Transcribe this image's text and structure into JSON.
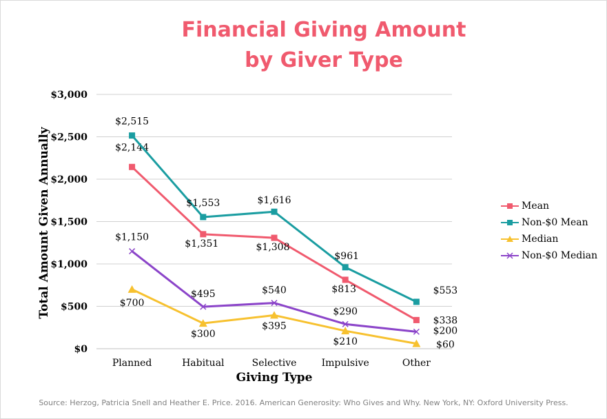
{
  "chart_data": {
    "type": "line",
    "title_lines": [
      "Financial Giving Amount",
      "by Giver Type"
    ],
    "xlabel": "Giving Type",
    "ylabel": "Total Amount Given Annually",
    "categories": [
      "Planned",
      "Habitual",
      "Selective",
      "Impulsive",
      "Other"
    ],
    "ylim": [
      0,
      3000
    ],
    "yticks": [
      {
        "value": 0,
        "label": "$0"
      },
      {
        "value": 500,
        "label": "$500"
      },
      {
        "value": 1000,
        "label": "$1,000"
      },
      {
        "value": 1500,
        "label": "$1,500"
      },
      {
        "value": 2000,
        "label": "$2,000"
      },
      {
        "value": 2500,
        "label": "$2,500"
      },
      {
        "value": 3000,
        "label": "$3,000"
      }
    ],
    "grid": true,
    "legend_position": "right",
    "series": [
      {
        "name": "Mean",
        "color": "#f05a6e",
        "marker": "square",
        "values": [
          2144,
          1351,
          1308,
          813,
          338
        ],
        "labels": [
          "$2,144",
          "$1,351",
          "$1,308",
          "$813",
          "$338"
        ]
      },
      {
        "name": "Non-$0 Mean",
        "color": "#1a9da1",
        "marker": "square",
        "values": [
          2515,
          1553,
          1616,
          961,
          553
        ],
        "labels": [
          "$2,515",
          "$1,553",
          "$1,616",
          "$961",
          "$553"
        ]
      },
      {
        "name": "Median",
        "color": "#f7c12f",
        "marker": "triangle",
        "values": [
          700,
          300,
          395,
          210,
          60
        ],
        "labels": [
          "$700",
          "$300",
          "$395",
          "$210",
          "$60"
        ]
      },
      {
        "name": "Non-$0 Median",
        "color": "#8b44c9",
        "marker": "x",
        "values": [
          1150,
          495,
          540,
          290,
          200
        ],
        "labels": [
          "$1,150",
          "$495",
          "$540",
          "$290",
          "$200"
        ]
      }
    ]
  },
  "source": "Source: Herzog, Patricia Snell and Heather E. Price. 2016. American Generosity: Who Gives and Why. New York, NY: Oxford University Press."
}
